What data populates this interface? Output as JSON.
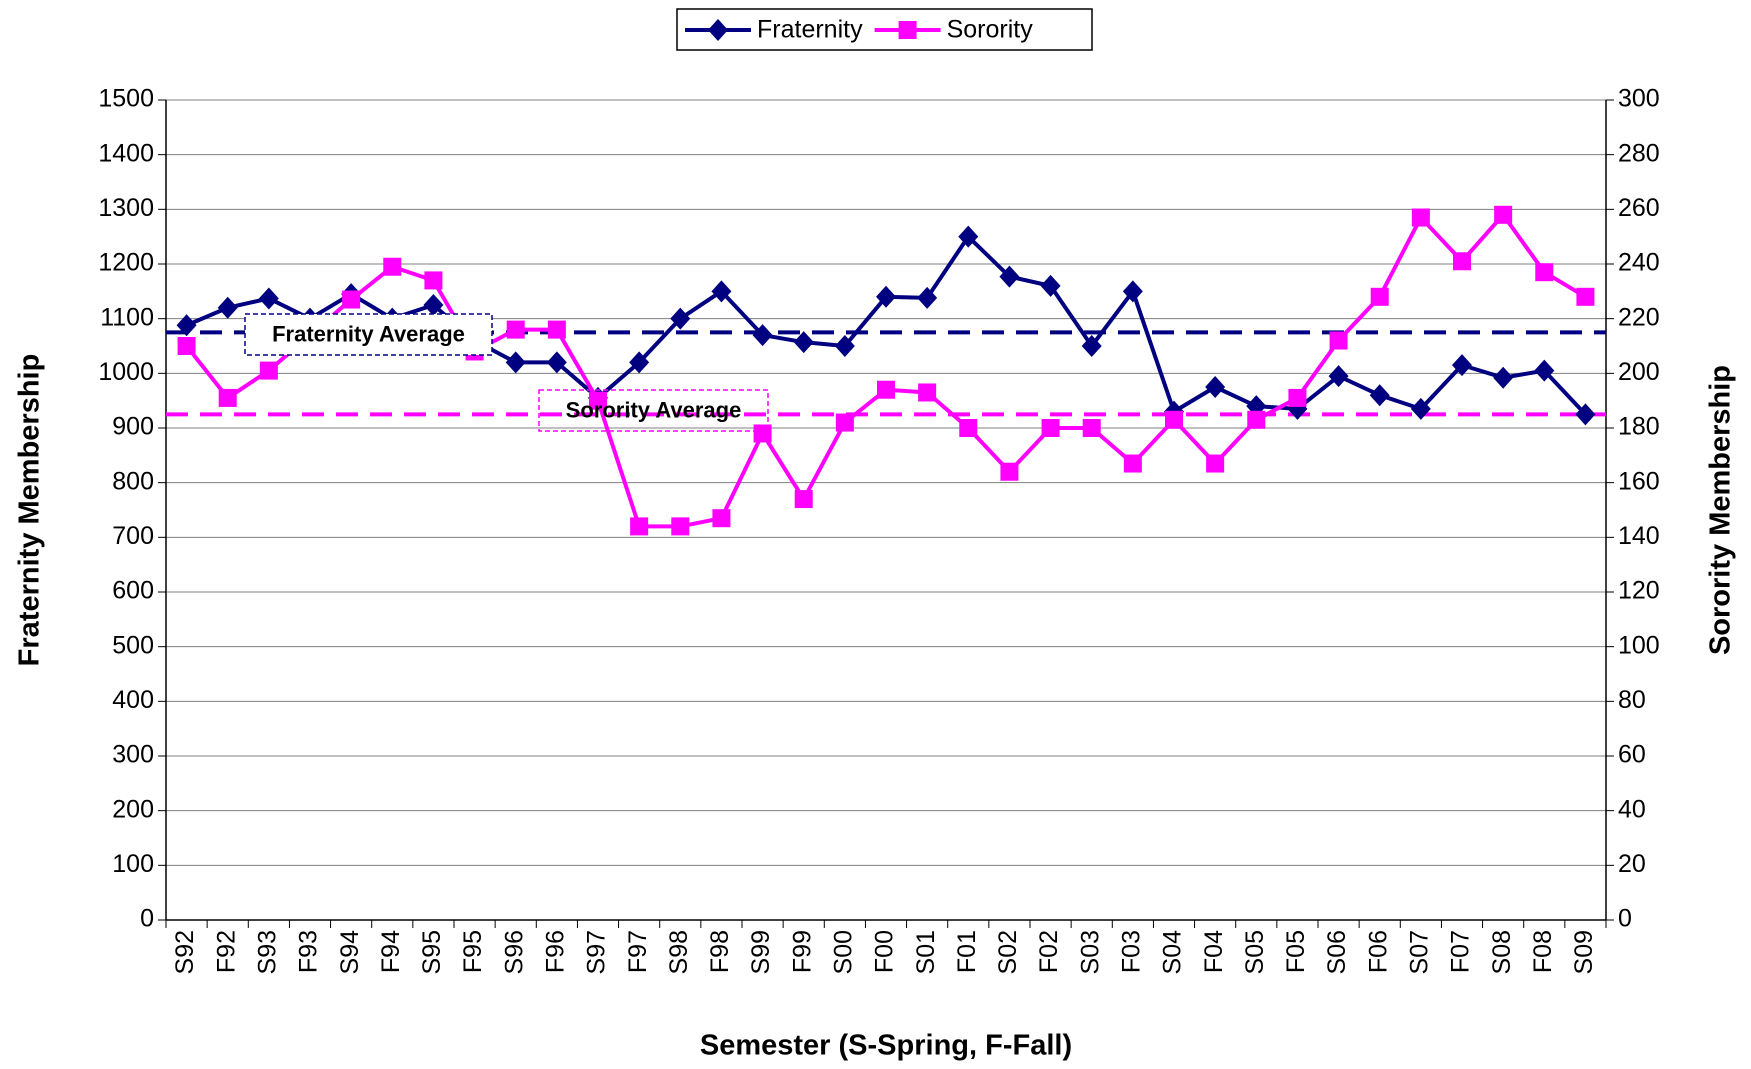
{
  "chart_data": {
    "type": "line",
    "x_label": "Semester (S-Spring, F-Fall)",
    "y_label": "Fraternity Membership",
    "y2_label": "Sorority Membership",
    "categories": [
      "S92",
      "F92",
      "S93",
      "F93",
      "S94",
      "F94",
      "S95",
      "F95",
      "S96",
      "F96",
      "S97",
      "F97",
      "S98",
      "F98",
      "S99",
      "F99",
      "S00",
      "F00",
      "S01",
      "F01",
      "S02",
      "F02",
      "S03",
      "F03",
      "S04",
      "F04",
      "S05",
      "F05",
      "S06",
      "F06",
      "S07",
      "F07",
      "S08",
      "F08",
      "S09"
    ],
    "series": [
      {
        "name": "Fraternity",
        "color": "#000080",
        "marker": "diamond",
        "axis": "y",
        "values": [
          1088,
          1120,
          1137,
          1100,
          1145,
          1100,
          1125,
          1060,
          1020,
          1020,
          955,
          1020,
          1100,
          1150,
          1070,
          1057,
          1050,
          1140,
          1138,
          1250,
          1177,
          1160,
          1050,
          1150,
          930,
          975,
          940,
          935,
          995,
          960,
          935,
          1015,
          992,
          1005,
          925
        ]
      },
      {
        "name": "Sorority",
        "color": "#ff00ff",
        "marker": "square",
        "axis": "y2",
        "values": [
          210,
          191,
          201,
          214,
          227,
          239,
          234,
          208,
          216,
          216,
          190,
          144,
          144,
          147,
          178,
          154,
          182,
          194,
          193,
          180,
          164,
          180,
          180,
          167,
          183,
          167,
          183,
          191,
          212,
          228,
          257,
          241,
          258,
          237,
          228
        ]
      }
    ],
    "reference_lines": [
      {
        "label": "Fraternity Average",
        "value": 1075,
        "axis": "y",
        "color": "#000080"
      },
      {
        "label": "Sorority Average",
        "value": 185,
        "axis": "y2",
        "color": "#ff00ff"
      }
    ],
    "ylim": [
      0,
      1500
    ],
    "yticks": [
      0,
      100,
      200,
      300,
      400,
      500,
      600,
      700,
      800,
      900,
      1000,
      1100,
      1200,
      1300,
      1400,
      1500
    ],
    "y2lim": [
      0,
      300
    ],
    "y2ticks": [
      0,
      20,
      40,
      60,
      80,
      100,
      120,
      140,
      160,
      180,
      200,
      220,
      240,
      260,
      280,
      300
    ],
    "grid": true,
    "legend": "top"
  }
}
